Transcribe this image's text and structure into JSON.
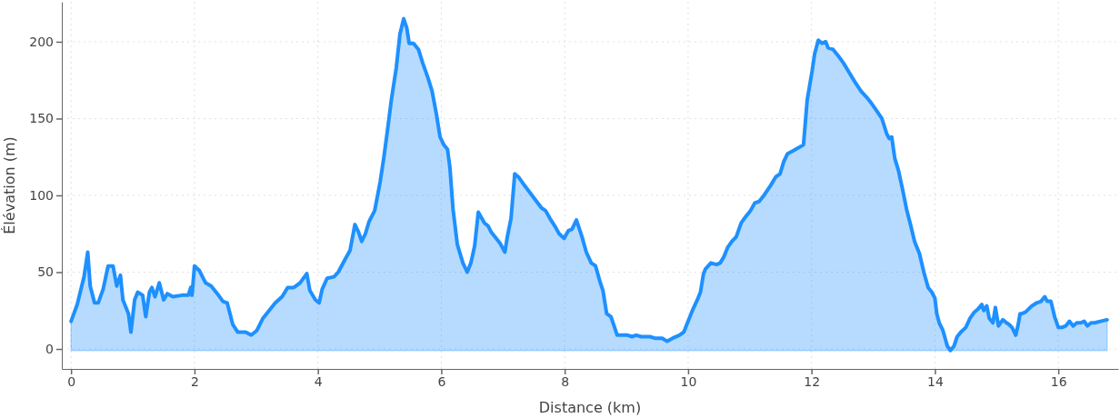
{
  "chart_data": {
    "type": "area",
    "xlabel": "Distance (km)",
    "ylabel": "Élévation (m)",
    "xlim": [
      -0.15,
      16.97
    ],
    "ylim": [
      -13,
      226
    ],
    "xticks": [
      0,
      2,
      4,
      6,
      8,
      10,
      12,
      14,
      16
    ],
    "yticks": [
      0,
      50,
      100,
      150,
      200
    ],
    "grid": true,
    "line_style": "solid",
    "series": [
      {
        "color": "#1e90ff",
        "x": [
          0,
          0.1,
          0.21,
          0.27,
          0.31,
          0.38,
          0.44,
          0.52,
          0.6,
          0.68,
          0.74,
          0.8,
          0.84,
          0.93,
          0.97,
          1.03,
          1.08,
          1.16,
          1.21,
          1.27,
          1.31,
          1.36,
          1.43,
          1.5,
          1.56,
          1.65,
          1.8,
          1.9,
          1.94,
          1.96,
          2,
          2.08,
          2.18,
          2.27,
          2.37,
          2.46,
          2.53,
          2.62,
          2.7,
          2.83,
          2.92,
          3.01,
          3.11,
          3.21,
          3.31,
          3.42,
          3.51,
          3.61,
          3.71,
          3.82,
          3.87,
          3.96,
          4.02,
          4.07,
          4.15,
          4.26,
          4.33,
          4.45,
          4.52,
          4.6,
          4.66,
          4.71,
          4.77,
          4.83,
          4.92,
          5.01,
          5.07,
          5.13,
          5.19,
          5.27,
          5.33,
          5.39,
          5.44,
          5.48,
          5.55,
          5.63,
          5.7,
          5.78,
          5.85,
          5.92,
          5.98,
          6.04,
          6.1,
          6.14,
          6.19,
          6.26,
          6.35,
          6.42,
          6.48,
          6.54,
          6.6,
          6.7,
          6.76,
          6.81,
          6.95,
          7.03,
          7.07,
          7.13,
          7.19,
          7.25,
          7.32,
          7.47,
          7.62,
          7.69,
          7.76,
          7.84,
          7.91,
          7.99,
          8.06,
          8.12,
          8.19,
          8.28,
          8.35,
          8.43,
          8.5,
          8.57,
          8.62,
          8.68,
          8.75,
          8.8,
          8.85,
          8.93,
          9.02,
          9.09,
          9.16,
          9.24,
          9.31,
          9.38,
          9.46,
          9.58,
          9.66,
          9.75,
          9.86,
          9.93,
          10,
          10.08,
          10.15,
          10.2,
          10.25,
          10.28,
          10.37,
          10.46,
          10.52,
          10.58,
          10.64,
          10.71,
          10.78,
          10.86,
          10.93,
          11.01,
          11.08,
          11.15,
          11.23,
          11.33,
          11.42,
          11.49,
          11.55,
          11.61,
          11.7,
          11.79,
          11.87,
          11.93,
          12.01,
          12.05,
          12.11,
          12.17,
          12.23,
          12.27,
          12.35,
          12.43,
          12.52,
          12.61,
          12.7,
          12.8,
          12.89,
          12.97,
          13.04,
          13.14,
          13.22,
          13.26,
          13.3,
          13.35,
          13.41,
          13.48,
          13.54,
          13.61,
          13.67,
          13.75,
          13.82,
          13.89,
          13.95,
          14,
          14.03,
          14.07,
          14.13,
          14.2,
          14.25,
          14.31,
          14.36,
          14.42,
          14.5,
          14.57,
          14.64,
          14.7,
          14.76,
          14.79,
          14.84,
          14.88,
          14.94,
          14.98,
          15.03,
          15.1,
          15.16,
          15.2,
          15.25,
          15.31,
          15.35,
          15.38,
          15.41,
          15.47,
          15.57,
          15.65,
          15.72,
          15.78,
          15.82,
          15.88,
          15.94,
          16,
          16.06,
          16.12,
          16.18,
          16.24,
          16.3,
          16.36,
          16.42,
          16.47,
          16.53,
          16.59,
          16.68,
          16.79
        ],
        "values": [
          18,
          29,
          47,
          63,
          41,
          30,
          30,
          39,
          54,
          54,
          41,
          48,
          32,
          23,
          11,
          32,
          37,
          35,
          21,
          37,
          40,
          34,
          43,
          32,
          36,
          34,
          35,
          35,
          40,
          35,
          54,
          51,
          43,
          41,
          36,
          31,
          30,
          16,
          11,
          11,
          9,
          12,
          20,
          25,
          30,
          34,
          40,
          40,
          43,
          49,
          38,
          32,
          30,
          39,
          46,
          47,
          50,
          59,
          64,
          81,
          76,
          70,
          75,
          83,
          90,
          109,
          125,
          143,
          162,
          183,
          205,
          215,
          209,
          199,
          199,
          195,
          186,
          177,
          168,
          153,
          138,
          133,
          130,
          118,
          91,
          68,
          56,
          50,
          56,
          67,
          89,
          82,
          80,
          76,
          69,
          63,
          73,
          85,
          114,
          112,
          108,
          100,
          92,
          90,
          85,
          80,
          75,
          72,
          77,
          78,
          84,
          73,
          63,
          56,
          54,
          44,
          38,
          23,
          21,
          15,
          9,
          9,
          9,
          8,
          9,
          8,
          8,
          8,
          7,
          7,
          5,
          7,
          9,
          11,
          18,
          26,
          32,
          37,
          49,
          52,
          56,
          55,
          56,
          60,
          66,
          70,
          73,
          82,
          86,
          90,
          95,
          96,
          100,
          106,
          112,
          114,
          122,
          127,
          129,
          131,
          133,
          162,
          181,
          192,
          201,
          199,
          200,
          196,
          195,
          191,
          186,
          180,
          174,
          168,
          164,
          160,
          156,
          150,
          140,
          137,
          138,
          124,
          116,
          103,
          91,
          80,
          70,
          62,
          50,
          40,
          37,
          33,
          23,
          17,
          12,
          2,
          -1,
          2,
          8,
          11,
          14,
          20,
          24,
          26,
          29,
          25,
          28,
          20,
          17,
          27,
          15,
          19,
          17,
          16,
          14,
          9,
          16,
          23,
          23,
          24,
          28,
          30,
          31,
          34,
          31,
          31,
          21,
          14,
          14,
          15,
          18,
          15,
          17,
          17,
          18,
          15,
          17,
          17,
          18,
          19
        ]
      }
    ]
  }
}
